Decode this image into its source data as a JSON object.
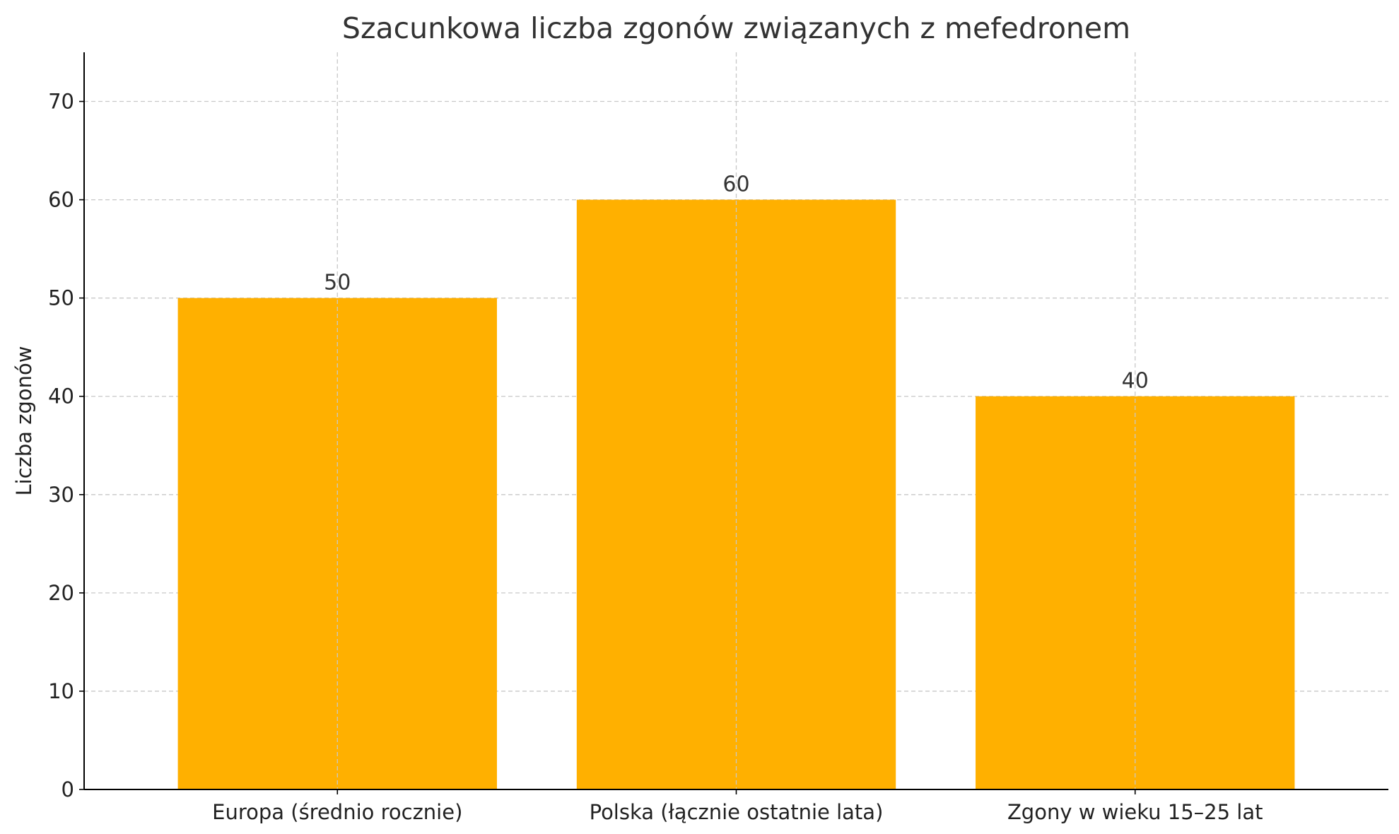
{
  "chart_data": {
    "type": "bar",
    "title": "Szacunkowa liczba zgonów związanych z mefedronem",
    "xlabel": "",
    "ylabel": "Liczba zgonów",
    "categories": [
      "Europa (średnio rocznie)",
      "Polska (łącznie ostatnie lata)",
      "Zgony w wieku 15–25 lat"
    ],
    "values": [
      50,
      60,
      40
    ],
    "data_labels": [
      "50",
      "60",
      "40"
    ],
    "ylim": [
      0,
      75
    ],
    "yticks": [
      0,
      10,
      20,
      30,
      40,
      50,
      60,
      70
    ],
    "grid": true,
    "bar_color": "#FFB000"
  }
}
